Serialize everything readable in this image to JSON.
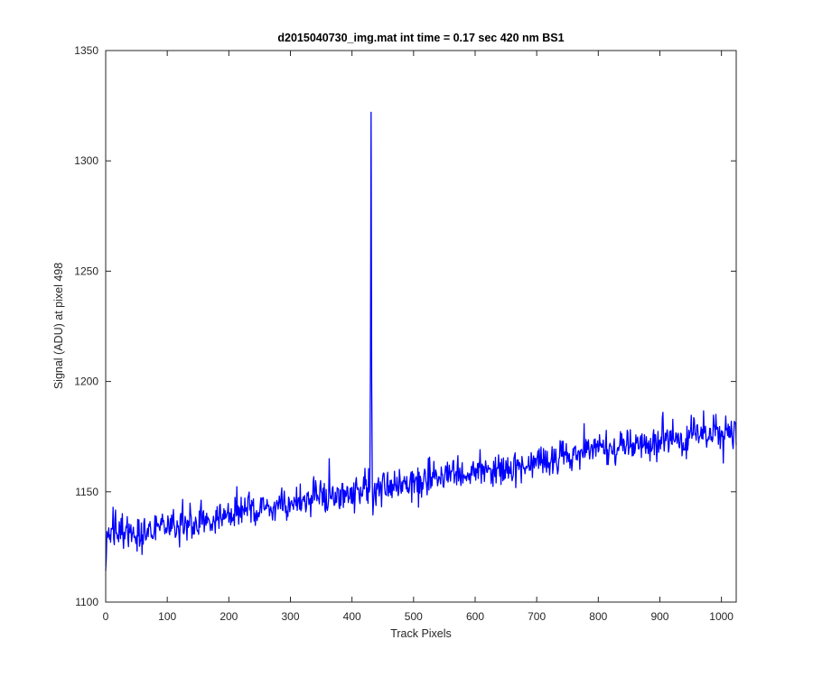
{
  "chart_data": {
    "type": "line",
    "title": "d2015040730_img.mat int time = 0.17 sec  420 nm BS1",
    "xlabel": "Track Pixels",
    "ylabel": "Signal (ADU) at pixel 498",
    "xlim": [
      0,
      1024
    ],
    "ylim": [
      1100,
      1350
    ],
    "xticks": [
      "0",
      "100",
      "200",
      "300",
      "400",
      "500",
      "600",
      "700",
      "800",
      "900",
      "1000"
    ],
    "yticks": [
      "1100",
      "1150",
      "1200",
      "1250",
      "1300",
      "1350"
    ],
    "grid": false,
    "series_color": "#0000ff",
    "trend": {
      "x": [
        0,
        1024
      ],
      "y": [
        1130,
        1179
      ]
    },
    "noise_amplitude": 4,
    "features": [
      {
        "x": 431,
        "y": 1322
      },
      {
        "x": 430,
        "y": 1209
      },
      {
        "x": 432,
        "y": 1200
      },
      {
        "x": 365,
        "y": 1147
      },
      {
        "x": 363,
        "y": 1165
      },
      {
        "x": 1,
        "y": 1120
      },
      {
        "x": 12,
        "y": 1143
      },
      {
        "x": 905,
        "y": 1186
      },
      {
        "x": 1003,
        "y": 1163
      }
    ]
  }
}
